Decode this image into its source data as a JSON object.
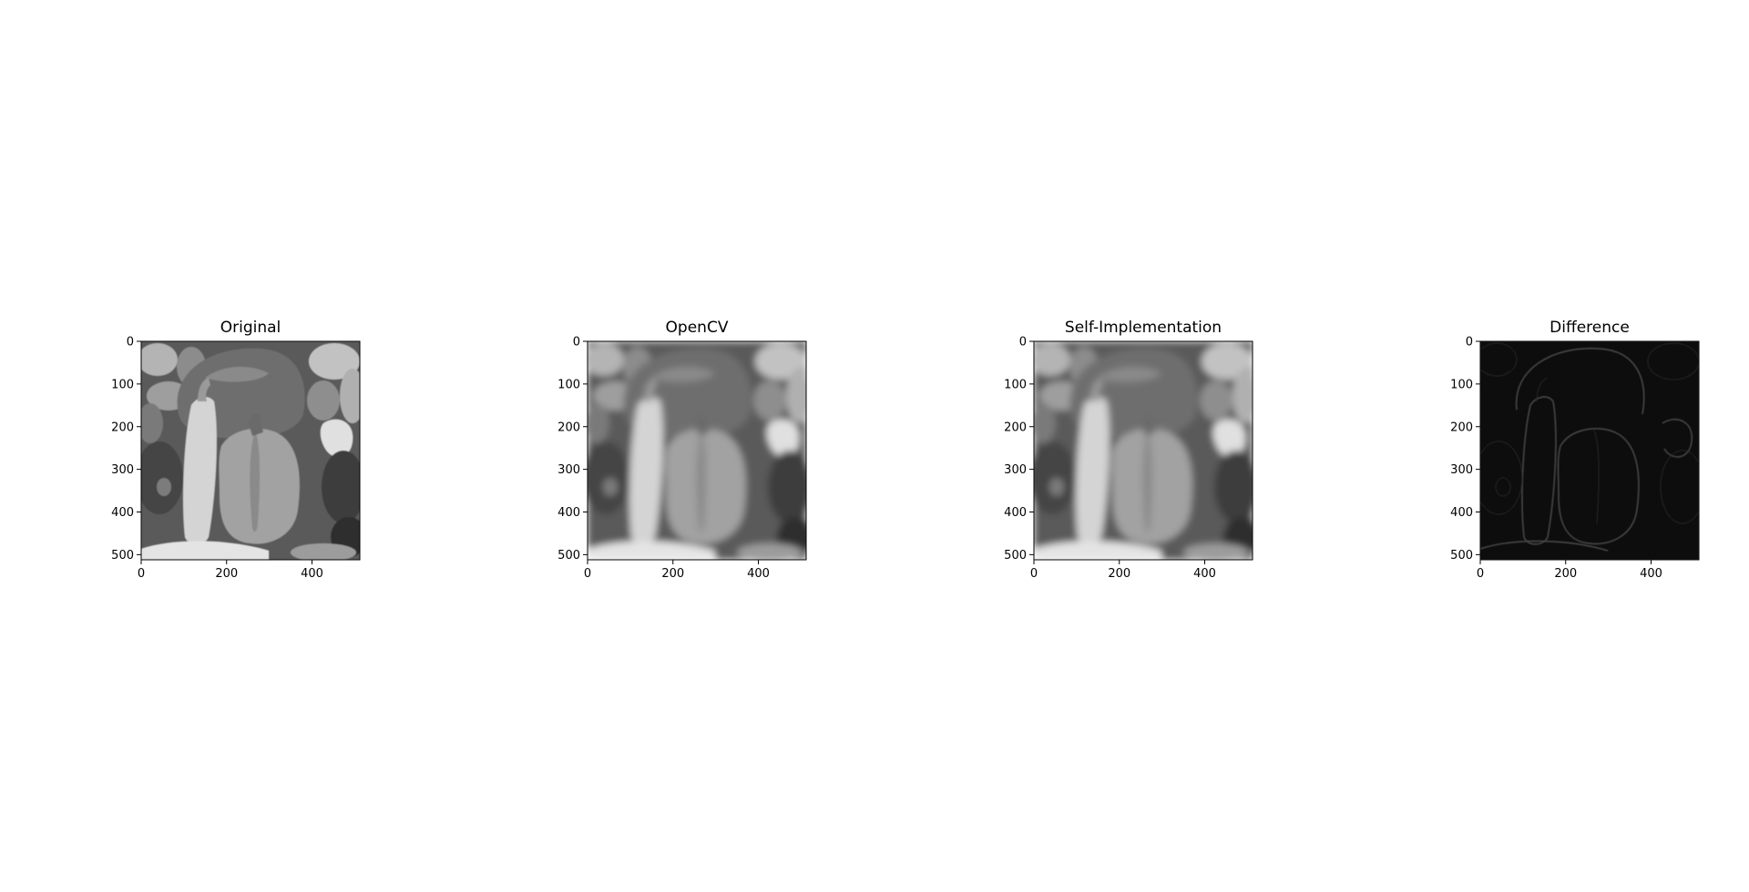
{
  "chart_data": {
    "type": "image-grid",
    "panels": [
      {
        "title": "Original",
        "image": "peppers-grayscale-sharp",
        "xticks": [
          "0",
          "200",
          "400"
        ],
        "yticks": [
          "0",
          "100",
          "200",
          "300",
          "400",
          "500"
        ],
        "xlim": [
          0,
          512
        ],
        "ylim": [
          512,
          0
        ]
      },
      {
        "title": "OpenCV",
        "image": "peppers-grayscale-blurred",
        "xticks": [
          "0",
          "200",
          "400"
        ],
        "yticks": [
          "0",
          "100",
          "200",
          "300",
          "400",
          "500"
        ],
        "xlim": [
          0,
          512
        ],
        "ylim": [
          512,
          0
        ]
      },
      {
        "title": "Self-Implementation",
        "image": "peppers-grayscale-blurred",
        "xticks": [
          "0",
          "200",
          "400"
        ],
        "yticks": [
          "0",
          "100",
          "200",
          "300",
          "400",
          "500"
        ],
        "xlim": [
          0,
          512
        ],
        "ylim": [
          512,
          0
        ]
      },
      {
        "title": "Difference",
        "image": "peppers-difference-edges",
        "xticks": [
          "0",
          "200",
          "400"
        ],
        "yticks": [
          "0",
          "100",
          "200",
          "300",
          "400",
          "500"
        ],
        "xlim": [
          0,
          512
        ],
        "ylim": [
          512,
          0
        ]
      }
    ]
  }
}
